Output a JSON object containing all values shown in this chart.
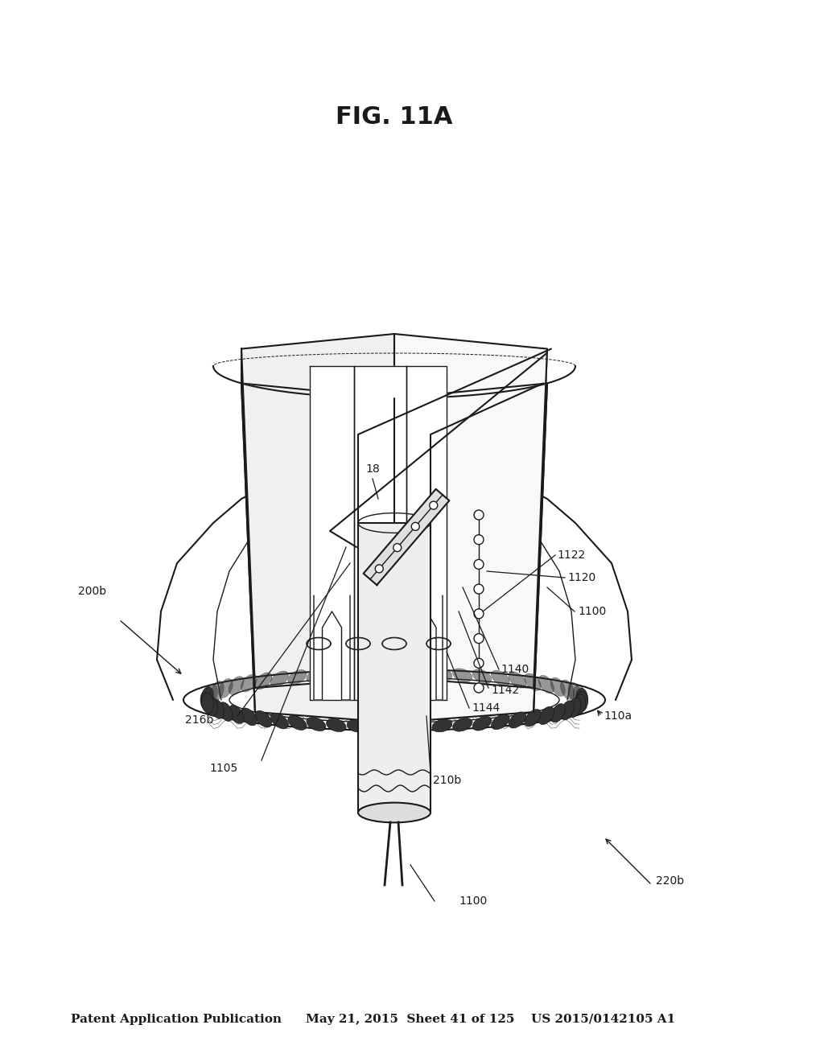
{
  "bg_color": "#ffffff",
  "line_color": "#1a1a1a",
  "header_text": "Patent Application Publication",
  "header_date": "May 21, 2015  Sheet 41 of 125",
  "header_patent": "US 2015/0142105 A1",
  "figure_label": "FIG. 11A"
}
